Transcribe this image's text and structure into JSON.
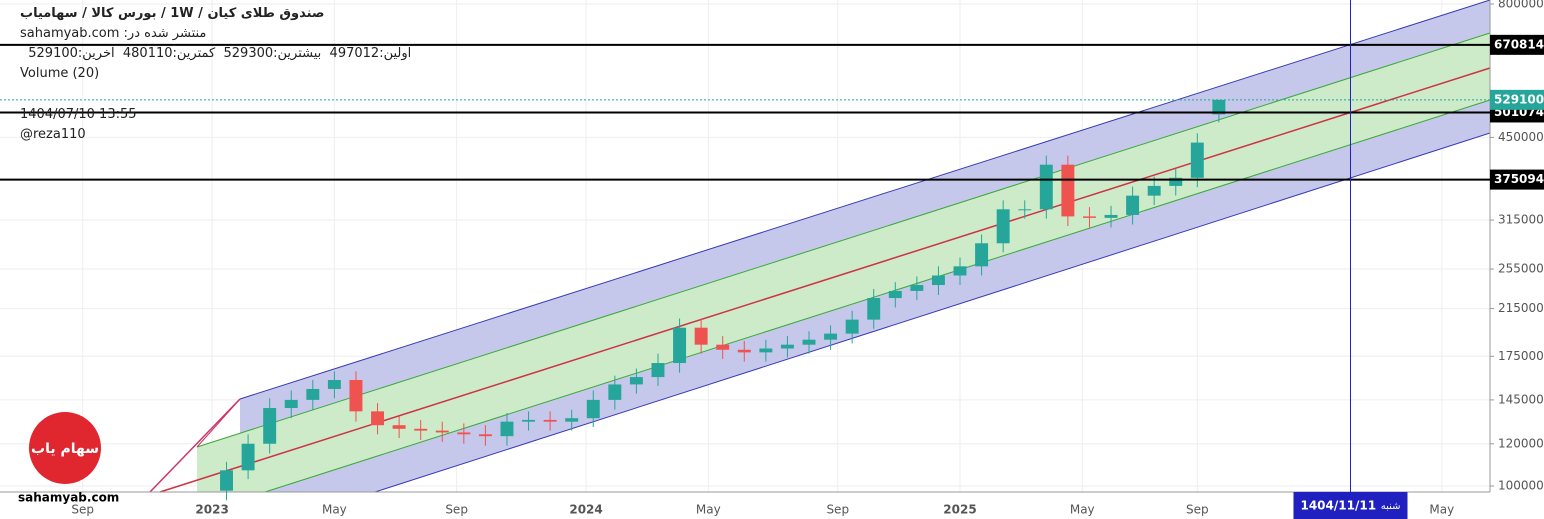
{
  "chart_data": {
    "type": "candlestick",
    "title": "صندوق طلای کیان / 1W / بورس کالا / سهامیاب",
    "subtitle": "منتشر شده در: sahamyab.com",
    "ohlc_labels": [
      "اولین:",
      "بیشترین:",
      "کمترین:",
      "آخرین:"
    ],
    "volume_label": "Volume (20)",
    "timestamp": "1404/07/10 13:55",
    "author": "@reza110",
    "watermark": "sahamyab.com",
    "logo": "سهام یاب",
    "up_color": "#26a69a",
    "down_color": "#ef5350",
    "log_scale": true,
    "grid": true,
    "x": [
      2,
      5,
      8,
      11,
      14,
      17,
      20,
      23,
      26,
      29,
      32,
      35,
      38,
      41,
      44,
      47,
      50,
      53,
      56,
      59,
      62,
      65,
      68,
      71,
      74,
      77,
      80,
      83,
      86,
      89,
      92,
      95,
      98,
      101,
      104,
      107,
      110,
      113,
      116,
      119,
      122,
      125,
      128,
      131,
      134,
      137,
      140
    ],
    "open": [
      98000,
      107000,
      120000,
      140000,
      145000,
      152000,
      158000,
      138000,
      130000,
      128000,
      127000,
      126000,
      125000,
      124000,
      132000,
      133000,
      132000,
      134000,
      145000,
      155000,
      160000,
      170000,
      198000,
      184000,
      180000,
      178000,
      181000,
      184000,
      188000,
      193000,
      205000,
      225000,
      232000,
      238000,
      248000,
      258000,
      285000,
      330000,
      330000,
      400000,
      320000,
      318000,
      322000,
      350000,
      365000,
      378000,
      497012
    ],
    "high": [
      111000,
      125000,
      146000,
      151000,
      158000,
      164000,
      164000,
      143000,
      135000,
      133000,
      132000,
      131000,
      130000,
      137000,
      138000,
      138000,
      139000,
      151000,
      161000,
      166000,
      177000,
      206000,
      206000,
      191000,
      187000,
      188000,
      191000,
      195000,
      200000,
      213000,
      234000,
      241000,
      247000,
      258000,
      268000,
      296000,
      343000,
      343000,
      416000,
      416000,
      333000,
      335000,
      364000,
      380000,
      393000,
      458000,
      529300
    ],
    "low": [
      94000,
      103000,
      115000,
      134000,
      139000,
      146000,
      132000,
      125000,
      123000,
      122000,
      121000,
      120000,
      119000,
      119000,
      127000,
      127000,
      127000,
      129000,
      139000,
      149000,
      154000,
      163000,
      177000,
      173000,
      171000,
      171000,
      174000,
      177000,
      180000,
      185000,
      197000,
      216000,
      223000,
      228000,
      238000,
      248000,
      274000,
      317000,
      317000,
      307000,
      305000,
      305000,
      309000,
      336000,
      350000,
      363000,
      480110
    ],
    "close": [
      107000,
      120000,
      140000,
      145000,
      152000,
      158000,
      138000,
      130000,
      128000,
      127000,
      126000,
      125000,
      124000,
      132000,
      133000,
      132000,
      134000,
      145000,
      155000,
      160000,
      170000,
      198000,
      184000,
      180000,
      178000,
      181000,
      184000,
      188000,
      193000,
      205000,
      225000,
      232000,
      238000,
      248000,
      258000,
      285000,
      330000,
      330000,
      400000,
      320000,
      318000,
      322000,
      350000,
      365000,
      378000,
      440000,
      529100
    ],
    "ylim": [
      96200,
      814000
    ],
    "yticks": [
      100000,
      120000,
      145000,
      175000,
      215000,
      255000,
      315000,
      450000,
      800000
    ],
    "xlim": [
      -29.5,
      177.7
    ],
    "xticks": [
      {
        "value": -18,
        "label": "Sep"
      },
      {
        "value": 0,
        "label": "2023"
      },
      {
        "value": 17,
        "label": "May"
      },
      {
        "value": 34,
        "label": "Sep"
      },
      {
        "value": 52,
        "label": "2024"
      },
      {
        "value": 69,
        "label": "May"
      },
      {
        "value": 87,
        "label": "Sep"
      },
      {
        "value": 104,
        "label": "2025"
      },
      {
        "value": 121,
        "label": "May"
      },
      {
        "value": 137,
        "label": "Sep"
      },
      {
        "value": 171,
        "label": "May"
      }
    ],
    "price_lines": [
      {
        "value": 670814,
        "color": "#000000"
      },
      {
        "value": 501074,
        "color": "#000000"
      },
      {
        "value": 375094,
        "color": "#000000"
      },
      {
        "value": 529100,
        "color": "#26a69a"
      }
    ],
    "crosshair": {
      "x": 158.3,
      "date": "1404/11/11",
      "day": "شنبه",
      "color": "#2020c0"
    }
  }
}
